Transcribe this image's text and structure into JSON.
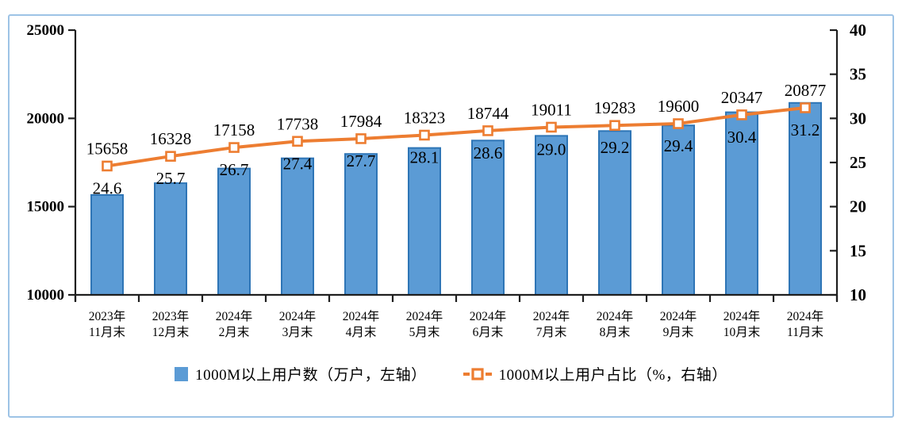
{
  "chart_data": {
    "type": "bar",
    "subtype": "bar-line-combo-dual-axis",
    "title": "",
    "grid": false,
    "legend_position": "bottom",
    "categories": [
      {
        "line1": "2023年",
        "line2": "11月末"
      },
      {
        "line1": "2023年",
        "line2": "12月末"
      },
      {
        "line1": "2024年",
        "line2": "2月末"
      },
      {
        "line1": "2024年",
        "line2": "3月末"
      },
      {
        "line1": "2024年",
        "line2": "4月末"
      },
      {
        "line1": "2024年",
        "line2": "5月末"
      },
      {
        "line1": "2024年",
        "line2": "6月末"
      },
      {
        "line1": "2024年",
        "line2": "7月末"
      },
      {
        "line1": "2024年",
        "line2": "8月末"
      },
      {
        "line1": "2024年",
        "line2": "9月末"
      },
      {
        "line1": "2024年",
        "line2": "10月末"
      },
      {
        "line1": "2024年",
        "line2": "11月末"
      }
    ],
    "series": [
      {
        "name": "1000M以上用户数（万户，左轴）",
        "type": "bar",
        "axis": "left",
        "values": [
          15658,
          16328,
          17158,
          17738,
          17984,
          18323,
          18744,
          19011,
          19283,
          19600,
          20347,
          20877
        ],
        "labels": [
          "15658",
          "16328",
          "17158",
          "17738",
          "17984",
          "18323",
          "18744",
          "19011",
          "19283",
          "19600",
          "20347",
          "20877"
        ],
        "fill": "#5B9BD5",
        "border": "#2E75B6"
      },
      {
        "name": "1000M以上用户占比（%，右轴）",
        "type": "line",
        "axis": "right",
        "values": [
          24.6,
          25.7,
          26.7,
          27.4,
          27.7,
          28.1,
          28.6,
          29.0,
          29.2,
          29.4,
          30.4,
          31.2
        ],
        "labels": [
          "24.6",
          "25.7",
          "26.7",
          "27.4",
          "27.7",
          "28.1",
          "28.6",
          "29.0",
          "29.2",
          "29.4",
          "30.4",
          "31.2"
        ],
        "color": "#ED7D31",
        "marker": "open-square"
      }
    ],
    "left_axis": {
      "min": 10000,
      "max": 25000,
      "step": 5000,
      "ticks": [
        "10000",
        "15000",
        "20000",
        "25000"
      ]
    },
    "right_axis": {
      "min": 10,
      "max": 40,
      "step": 5,
      "ticks": [
        "10",
        "15",
        "20",
        "25",
        "30",
        "35",
        "40"
      ]
    }
  },
  "frame": {
    "border_color": "#9DC3E6",
    "background": "#FFFFFF",
    "axis_color": "#1f1f1f",
    "text_color": "#000000"
  }
}
